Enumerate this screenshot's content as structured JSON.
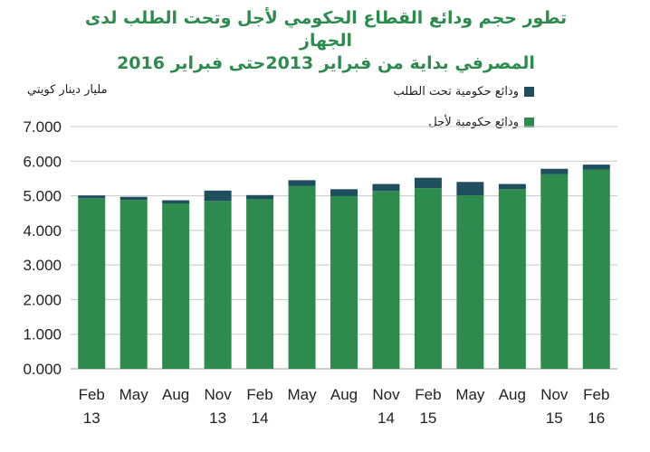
{
  "title_line1": "تطور حجم  ودائع القطاع الحكومي لأجل وتحت الطلب لدى الجهاز",
  "title_line2": "المصرفي بداية من فبراير 2013حتى فبراير 2016",
  "colors": {
    "term": "#2e8b4e",
    "demand": "#1f4e5f",
    "title": "#2e8b4e",
    "grid": "#c8c8c8"
  },
  "chart_data": {
    "type": "bar",
    "stacked": true,
    "categories": [
      [
        "Feb",
        "13"
      ],
      [
        "May",
        ""
      ],
      [
        "Aug",
        ""
      ],
      [
        "Nov",
        "13"
      ],
      [
        "Feb",
        "14"
      ],
      [
        "May",
        ""
      ],
      [
        "Aug",
        ""
      ],
      [
        "Nov",
        "14"
      ],
      [
        "Feb",
        "15"
      ],
      [
        "May",
        ""
      ],
      [
        "Aug",
        ""
      ],
      [
        "Nov",
        "15"
      ],
      [
        "Feb",
        "16"
      ]
    ],
    "series": [
      {
        "name": "ودائع حكومية لأجل",
        "color": "#2e8b4e",
        "values": [
          4.93,
          4.88,
          4.78,
          4.85,
          4.9,
          5.28,
          4.99,
          5.14,
          5.22,
          5.01,
          5.19,
          5.62,
          5.76
        ]
      },
      {
        "name": "ودائع حكومية تحت الطلب",
        "color": "#1f4e5f",
        "values": [
          0.08,
          0.09,
          0.09,
          0.3,
          0.12,
          0.17,
          0.2,
          0.2,
          0.3,
          0.39,
          0.15,
          0.16,
          0.14
        ]
      }
    ],
    "ylabel": "مليار دينار كويتي",
    "ylim": [
      0,
      7
    ],
    "yticks": [
      "0.000",
      "1.000",
      "2.000",
      "3.000",
      "4.000",
      "5.000",
      "6.000",
      "7.000"
    ],
    "grid": true,
    "legend": "top-right"
  }
}
